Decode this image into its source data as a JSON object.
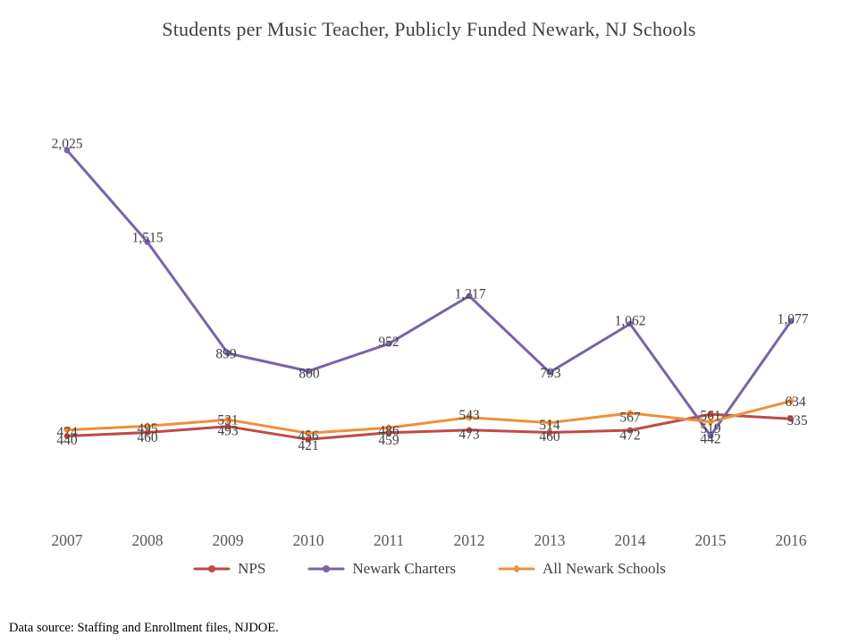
{
  "title": "Students per Music Teacher, Publicly Funded Newark, NJ Schools",
  "footer": "Data source: Staffing and Enrollment files, NJDOE.",
  "chart_data": {
    "type": "line",
    "title": "Students per Music Teacher, Publicly Funded Newark, NJ Schools",
    "xlabel": "",
    "ylabel": "",
    "categories": [
      "2007",
      "2008",
      "2009",
      "2010",
      "2011",
      "2012",
      "2013",
      "2014",
      "2015",
      "2016"
    ],
    "series": [
      {
        "name": "NPS",
        "color": "#BE4B48",
        "marker": "circle",
        "values": [
          440,
          460,
          493,
          421,
          459,
          473,
          460,
          472,
          561,
          535
        ]
      },
      {
        "name": "Newark Charters",
        "color": "#7A63A8",
        "marker": "circle",
        "values": [
          2025,
          1515,
          899,
          800,
          952,
          1217,
          793,
          1062,
          442,
          1077
        ]
      },
      {
        "name": "All Newark Schools",
        "color": "#EF8F3C",
        "marker": "diamond",
        "values": [
          474,
          495,
          531,
          456,
          486,
          543,
          514,
          567,
          519,
          634
        ]
      }
    ],
    "grid": false,
    "axes_hidden": true,
    "data_labels": true,
    "legend_position": "bottom",
    "data_label_color": "#404040",
    "axis_label_color": "#595959"
  }
}
